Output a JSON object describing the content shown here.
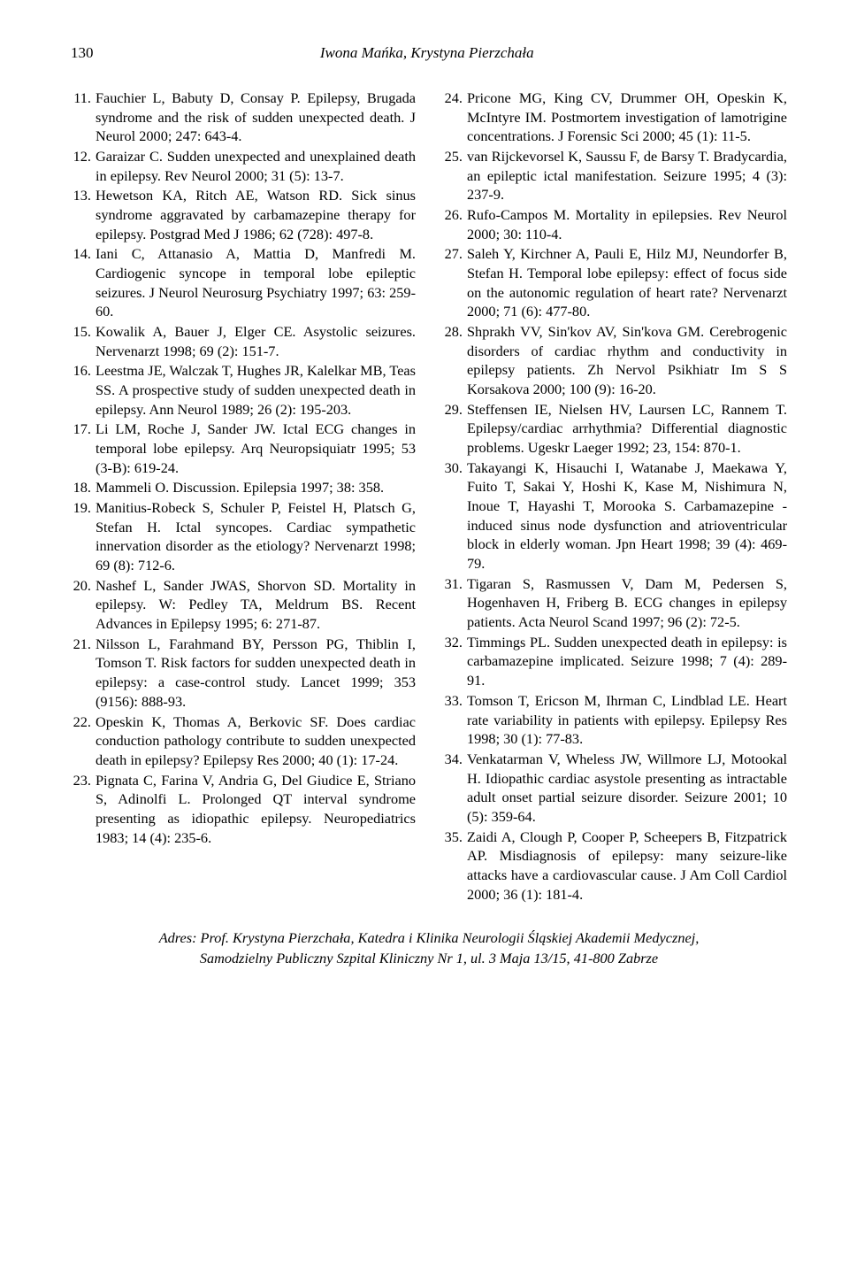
{
  "page_number": "130",
  "running_title": "Iwona Mańka, Krystyna Pierzchała",
  "references": [
    {
      "num": "11.",
      "text": "Fauchier L, Babuty D, Consay P. Epilepsy, Brugada syndrome and the risk of sudden unexpected death. J Neurol 2000; 247: 643-4."
    },
    {
      "num": "12.",
      "text": "Garaizar C. Sudden unexpected and unexplained death in epilepsy. Rev Neurol 2000; 31 (5): 13-7."
    },
    {
      "num": "13.",
      "text": "Hewetson KA, Ritch AE, Watson RD. Sick sinus syndrome aggravated by carbamazepine therapy for epilepsy. Postgrad Med J 1986; 62 (728): 497-8."
    },
    {
      "num": "14.",
      "text": "Iani C, Attanasio A, Mattia D, Manfredi M. Cardiogenic syncope in temporal lobe epileptic seizures. J Neurol Neurosurg Psychiatry 1997; 63: 259-60."
    },
    {
      "num": "15.",
      "text": "Kowalik A, Bauer J, Elger CE. Asystolic seizures. Nervenarzt 1998; 69 (2): 151-7."
    },
    {
      "num": "16.",
      "text": "Leestma JE, Walczak T, Hughes JR, Kalelkar MB, Teas SS. A prospective study of sudden unexpected death in epilepsy. Ann Neurol 1989; 26 (2): 195-203."
    },
    {
      "num": "17.",
      "text": "Li LM, Roche J, Sander JW. Ictal ECG changes in temporal lobe epilepsy. Arq Neuropsiquiatr 1995; 53 (3-B): 619-24."
    },
    {
      "num": "18.",
      "text": "Mammeli O. Discussion. Epilepsia 1997; 38: 358."
    },
    {
      "num": "19.",
      "text": "Manitius-Robeck S, Schuler P, Feistel H, Platsch G, Stefan H. Ictal syncopes. Cardiac sympathetic innervation disorder as the etiology? Nervenarzt 1998; 69 (8): 712-6."
    },
    {
      "num": "20.",
      "text": "Nashef L, Sander JWAS, Shorvon SD. Mortality in epilepsy. W: Pedley TA, Meldrum BS. Recent Advances in Epilepsy 1995; 6: 271-87."
    },
    {
      "num": "21.",
      "text": "Nilsson L, Farahmand BY, Persson PG, Thiblin I, Tomson T. Risk factors for sudden unexpected death in epilepsy: a case-control study. Lancet 1999; 353 (9156): 888-93."
    },
    {
      "num": "22.",
      "text": "Opeskin K, Thomas A, Berkovic SF. Does cardiac conduction pathology contribute to sudden unexpected death in epilepsy? Epilepsy Res 2000; 40 (1): 17-24."
    },
    {
      "num": "23.",
      "text": "Pignata C, Farina V, Andria G, Del Giudice E, Striano S, Adinolfi L. Prolonged QT interval syndrome presenting as idiopathic epilepsy. Neuropediatrics 1983; 14 (4): 235-6."
    },
    {
      "num": "24.",
      "text": "Pricone MG, King CV, Drummer OH, Opeskin K, McIntyre IM. Postmortem investigation of lamotrigine concentrations. J Forensic Sci 2000; 45 (1): 11-5."
    },
    {
      "num": "25.",
      "text": "van Rijckevorsel K, Saussu F, de Barsy T. Bradycardia, an epileptic ictal manifestation. Seizure 1995; 4 (3): 237-9."
    },
    {
      "num": "26.",
      "text": "Rufo-Campos M. Mortality in epilepsies. Rev Neurol 2000; 30: 110-4."
    },
    {
      "num": "27.",
      "text": "Saleh Y, Kirchner A, Pauli E, Hilz MJ, Neundorfer B, Stefan H. Temporal lobe epilepsy: effect of focus side on the autonomic regulation of heart rate? Nervenarzt 2000; 71 (6): 477-80."
    },
    {
      "num": "28.",
      "text": "Shprakh VV, Sin'kov AV, Sin'kova GM. Cerebrogenic disorders of cardiac rhythm and conductivity in epilepsy patients. Zh Nervol Psikhiatr Im S S Korsakova 2000; 100 (9): 16-20."
    },
    {
      "num": "29.",
      "text": "Steffensen IE, Nielsen HV, Laursen LC, Rannem T. Epilepsy/cardiac arrhythmia? Differential diagnostic problems. Ugeskr Laeger 1992; 23, 154: 870-1."
    },
    {
      "num": "30.",
      "text": "Takayangi K, Hisauchi I, Watanabe J, Maekawa Y, Fuito T, Sakai Y, Hoshi K, Kase M, Nishimura N, Inoue T, Hayashi T, Morooka S. Carbamazepine - induced sinus node dysfunction and atrioventricular block in elderly woman. Jpn Heart 1998; 39 (4): 469-79."
    },
    {
      "num": "31.",
      "text": "Tigaran S, Rasmussen V, Dam M, Pedersen S, Hogenhaven H, Friberg B. ECG changes in epilepsy patients. Acta Neurol Scand 1997; 96 (2): 72-5."
    },
    {
      "num": "32.",
      "text": "Timmings PL. Sudden unexpected death in epilepsy: is carbamazepine implicated. Seizure 1998; 7 (4): 289-91."
    },
    {
      "num": "33.",
      "text": "Tomson T, Ericson M, Ihrman C, Lindblad LE. Heart rate variability in patients with epilepsy. Epilepsy Res 1998; 30 (1): 77-83."
    },
    {
      "num": "34.",
      "text": "Venkatarman V, Wheless JW, Willmore LJ, Motookal H. Idiopathic cardiac asystole presenting as intractable adult onset partial seizure disorder. Seizure 2001; 10 (5): 359-64."
    },
    {
      "num": "35.",
      "text": "Zaidi A, Clough P, Cooper P, Scheepers B, Fitzpatrick AP. Misdiagnosis of epilepsy: many seizure-like attacks have a cardiovascular cause. J Am Coll Cardiol 2000; 36 (1): 181-4."
    }
  ],
  "address_line1": "Adres: Prof. Krystyna Pierzchała, Katedra i Klinika Neurologii Śląskiej Akademii Medycznej,",
  "address_line2": "Samodzielny Publiczny Szpital Kliniczny Nr 1, ul. 3 Maja 13/15, 41-800 Zabrze"
}
